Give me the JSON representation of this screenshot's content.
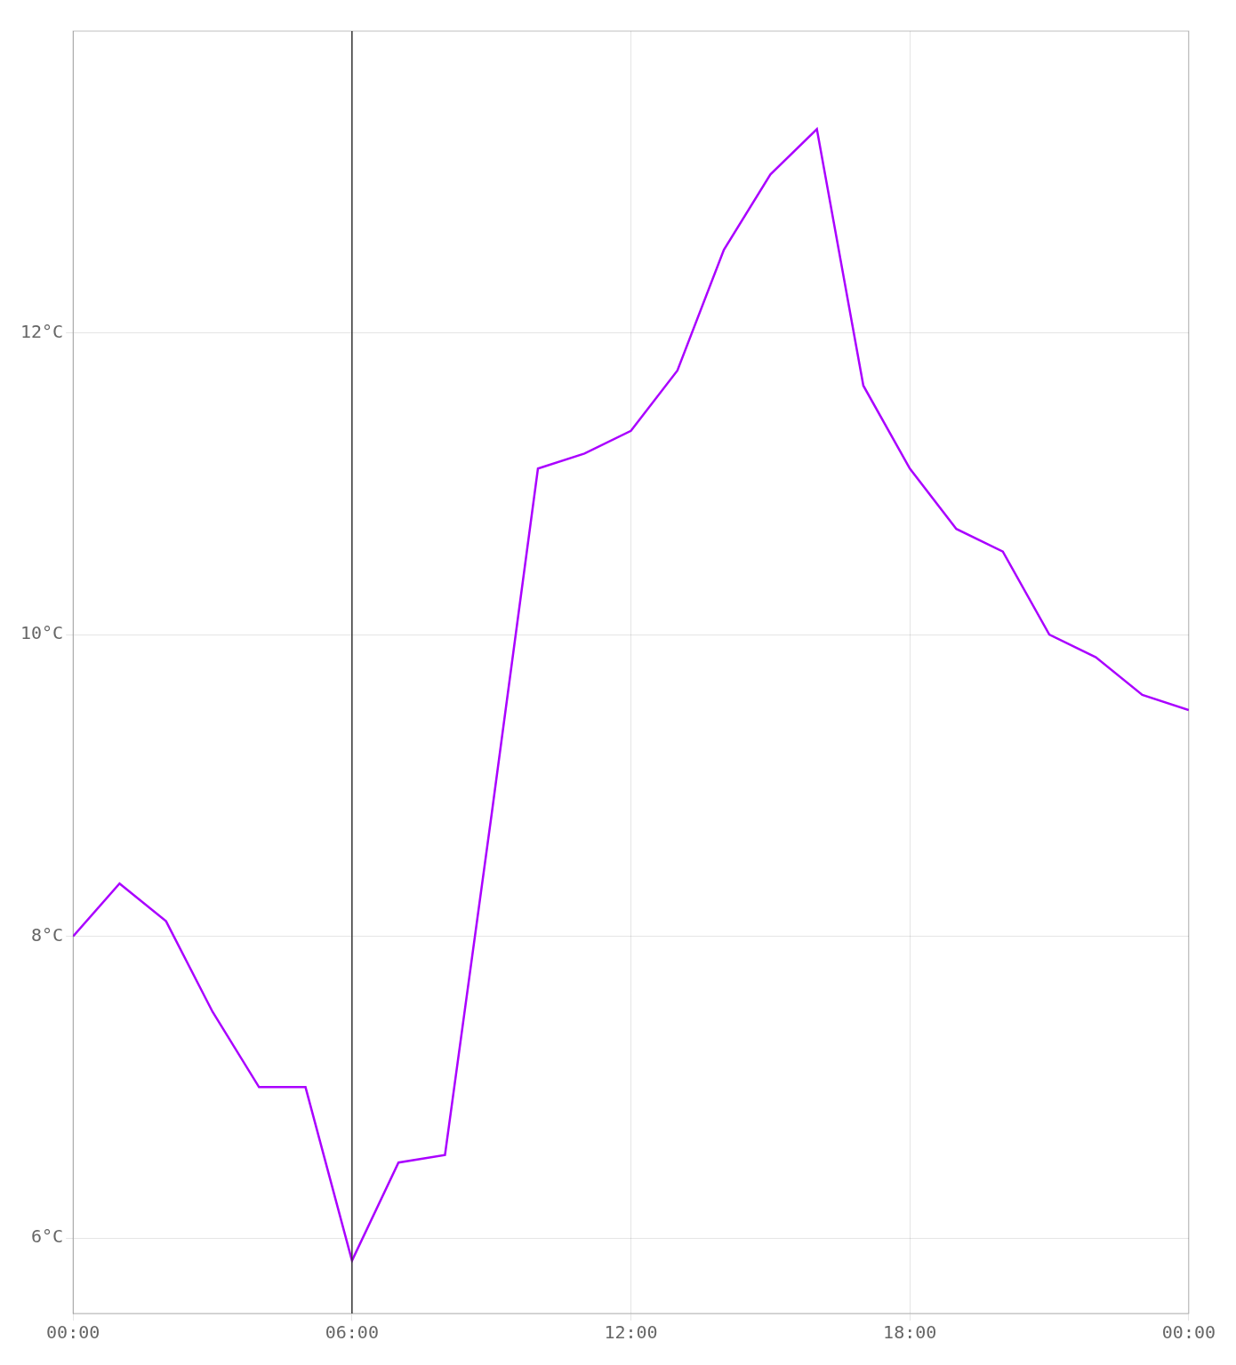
{
  "chart_data": {
    "type": "line",
    "x": [
      0,
      1,
      2,
      3,
      4,
      5,
      6,
      7,
      8,
      9,
      10,
      11,
      12,
      13,
      14,
      15,
      16,
      17,
      18,
      19,
      20,
      21,
      22,
      23,
      24
    ],
    "values": [
      8.0,
      8.35,
      8.1,
      7.5,
      7.0,
      7.0,
      5.85,
      6.5,
      6.55,
      8.8,
      11.1,
      11.2,
      11.35,
      11.75,
      12.55,
      13.05,
      13.35,
      11.65,
      11.1,
      10.7,
      10.55,
      10.0,
      9.85,
      9.6,
      9.5
    ],
    "color": "#aa00ff",
    "xlim": [
      0,
      24
    ],
    "xticks": [
      {
        "value": 0,
        "label": "00:00"
      },
      {
        "value": 6,
        "label": "06:00"
      },
      {
        "value": 12,
        "label": "12:00"
      },
      {
        "value": 18,
        "label": "18:00"
      },
      {
        "value": 24,
        "label": "00:00"
      }
    ],
    "ylim": [
      5.5,
      14.0
    ],
    "yticks": [
      {
        "value": 6,
        "label": "6°C"
      },
      {
        "value": 8,
        "label": "8°C"
      },
      {
        "value": 10,
        "label": "10°C"
      },
      {
        "value": 12,
        "label": "12°C"
      }
    ],
    "annotations": [
      {
        "type": "vline",
        "x": 6,
        "color": "#333333"
      }
    ],
    "grid": true,
    "marker": "none"
  }
}
